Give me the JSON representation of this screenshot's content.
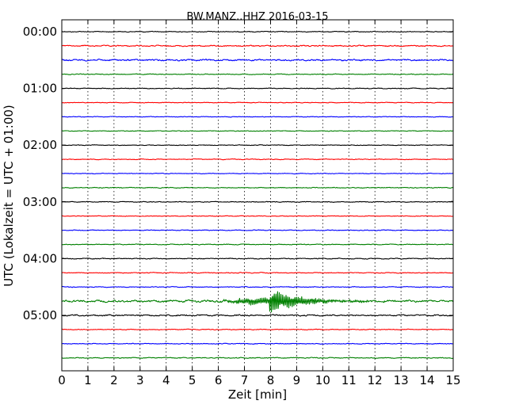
{
  "chart_data": {
    "type": "line",
    "title": "BW.MANZ..HHZ 2016-03-15",
    "xlabel": "Zeit  [min]",
    "ylabel": "UTC (Lokalzeit = UTC + 01:00)",
    "xlim": [
      0,
      15
    ],
    "x_ticks": [
      "0",
      "1",
      "2",
      "3",
      "4",
      "5",
      "6",
      "7",
      "8",
      "9",
      "10",
      "11",
      "12",
      "13",
      "14",
      "15"
    ],
    "y_tick_labels": [
      "00:00",
      "01:00",
      "02:00",
      "03:00",
      "04:00",
      "05:00"
    ],
    "grid": "vertical dotted",
    "trace_colors": [
      "#000000",
      "#ff0000",
      "#0000ff",
      "#008000"
    ],
    "traces": [
      {
        "start": "00:00",
        "color": "#000000",
        "noise": 0.6
      },
      {
        "start": "00:15",
        "color": "#ff0000",
        "noise": 0.9
      },
      {
        "start": "00:30",
        "color": "#0000ff",
        "noise": 1.2
      },
      {
        "start": "00:45",
        "color": "#008000",
        "noise": 0.6
      },
      {
        "start": "01:00",
        "color": "#000000",
        "noise": 0.6
      },
      {
        "start": "01:15",
        "color": "#ff0000",
        "noise": 0.5
      },
      {
        "start": "01:30",
        "color": "#0000ff",
        "noise": 0.5
      },
      {
        "start": "01:45",
        "color": "#008000",
        "noise": 0.5
      },
      {
        "start": "02:00",
        "color": "#000000",
        "noise": 0.5
      },
      {
        "start": "02:15",
        "color": "#ff0000",
        "noise": 0.6
      },
      {
        "start": "02:30",
        "color": "#0000ff",
        "noise": 0.5
      },
      {
        "start": "02:45",
        "color": "#008000",
        "noise": 0.6
      },
      {
        "start": "03:00",
        "color": "#000000",
        "noise": 0.6
      },
      {
        "start": "03:15",
        "color": "#ff0000",
        "noise": 0.5
      },
      {
        "start": "03:30",
        "color": "#0000ff",
        "noise": 0.6
      },
      {
        "start": "03:45",
        "color": "#008000",
        "noise": 0.6
      },
      {
        "start": "04:00",
        "color": "#000000",
        "noise": 0.7
      },
      {
        "start": "04:15",
        "color": "#ff0000",
        "noise": 0.6
      },
      {
        "start": "04:30",
        "color": "#0000ff",
        "noise": 0.6
      },
      {
        "start": "04:45",
        "color": "#008000",
        "noise": 1.6,
        "event_min": 8.0,
        "event_peak": 14
      },
      {
        "start": "05:00",
        "color": "#000000",
        "noise": 1.1
      },
      {
        "start": "05:15",
        "color": "#ff0000",
        "noise": 0.6
      },
      {
        "start": "05:30",
        "color": "#0000ff",
        "noise": 0.6
      },
      {
        "start": "05:45",
        "color": "#008000",
        "noise": 0.7
      }
    ]
  }
}
